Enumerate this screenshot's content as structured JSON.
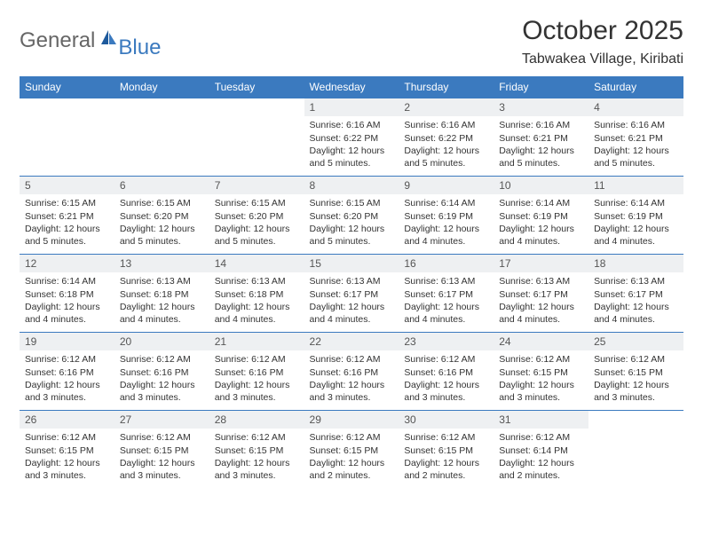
{
  "logo": {
    "text1": "General",
    "text2": "Blue"
  },
  "title": "October 2025",
  "location": "Tabwakea Village, Kiribati",
  "colors": {
    "header_bg": "#3b7abf",
    "header_text": "#ffffff",
    "daynum_bg": "#eef0f2",
    "daynum_text": "#555555",
    "border": "#3b7abf",
    "body_text": "#333333",
    "logo_gray": "#666666",
    "logo_blue": "#3b7abf"
  },
  "weekdays": [
    "Sunday",
    "Monday",
    "Tuesday",
    "Wednesday",
    "Thursday",
    "Friday",
    "Saturday"
  ],
  "weeks": [
    [
      {
        "day": "",
        "sunrise": "",
        "sunset": "",
        "daylight": ""
      },
      {
        "day": "",
        "sunrise": "",
        "sunset": "",
        "daylight": ""
      },
      {
        "day": "",
        "sunrise": "",
        "sunset": "",
        "daylight": ""
      },
      {
        "day": "1",
        "sunrise": "Sunrise: 6:16 AM",
        "sunset": "Sunset: 6:22 PM",
        "daylight": "Daylight: 12 hours and 5 minutes."
      },
      {
        "day": "2",
        "sunrise": "Sunrise: 6:16 AM",
        "sunset": "Sunset: 6:22 PM",
        "daylight": "Daylight: 12 hours and 5 minutes."
      },
      {
        "day": "3",
        "sunrise": "Sunrise: 6:16 AM",
        "sunset": "Sunset: 6:21 PM",
        "daylight": "Daylight: 12 hours and 5 minutes."
      },
      {
        "day": "4",
        "sunrise": "Sunrise: 6:16 AM",
        "sunset": "Sunset: 6:21 PM",
        "daylight": "Daylight: 12 hours and 5 minutes."
      }
    ],
    [
      {
        "day": "5",
        "sunrise": "Sunrise: 6:15 AM",
        "sunset": "Sunset: 6:21 PM",
        "daylight": "Daylight: 12 hours and 5 minutes."
      },
      {
        "day": "6",
        "sunrise": "Sunrise: 6:15 AM",
        "sunset": "Sunset: 6:20 PM",
        "daylight": "Daylight: 12 hours and 5 minutes."
      },
      {
        "day": "7",
        "sunrise": "Sunrise: 6:15 AM",
        "sunset": "Sunset: 6:20 PM",
        "daylight": "Daylight: 12 hours and 5 minutes."
      },
      {
        "day": "8",
        "sunrise": "Sunrise: 6:15 AM",
        "sunset": "Sunset: 6:20 PM",
        "daylight": "Daylight: 12 hours and 5 minutes."
      },
      {
        "day": "9",
        "sunrise": "Sunrise: 6:14 AM",
        "sunset": "Sunset: 6:19 PM",
        "daylight": "Daylight: 12 hours and 4 minutes."
      },
      {
        "day": "10",
        "sunrise": "Sunrise: 6:14 AM",
        "sunset": "Sunset: 6:19 PM",
        "daylight": "Daylight: 12 hours and 4 minutes."
      },
      {
        "day": "11",
        "sunrise": "Sunrise: 6:14 AM",
        "sunset": "Sunset: 6:19 PM",
        "daylight": "Daylight: 12 hours and 4 minutes."
      }
    ],
    [
      {
        "day": "12",
        "sunrise": "Sunrise: 6:14 AM",
        "sunset": "Sunset: 6:18 PM",
        "daylight": "Daylight: 12 hours and 4 minutes."
      },
      {
        "day": "13",
        "sunrise": "Sunrise: 6:13 AM",
        "sunset": "Sunset: 6:18 PM",
        "daylight": "Daylight: 12 hours and 4 minutes."
      },
      {
        "day": "14",
        "sunrise": "Sunrise: 6:13 AM",
        "sunset": "Sunset: 6:18 PM",
        "daylight": "Daylight: 12 hours and 4 minutes."
      },
      {
        "day": "15",
        "sunrise": "Sunrise: 6:13 AM",
        "sunset": "Sunset: 6:17 PM",
        "daylight": "Daylight: 12 hours and 4 minutes."
      },
      {
        "day": "16",
        "sunrise": "Sunrise: 6:13 AM",
        "sunset": "Sunset: 6:17 PM",
        "daylight": "Daylight: 12 hours and 4 minutes."
      },
      {
        "day": "17",
        "sunrise": "Sunrise: 6:13 AM",
        "sunset": "Sunset: 6:17 PM",
        "daylight": "Daylight: 12 hours and 4 minutes."
      },
      {
        "day": "18",
        "sunrise": "Sunrise: 6:13 AM",
        "sunset": "Sunset: 6:17 PM",
        "daylight": "Daylight: 12 hours and 4 minutes."
      }
    ],
    [
      {
        "day": "19",
        "sunrise": "Sunrise: 6:12 AM",
        "sunset": "Sunset: 6:16 PM",
        "daylight": "Daylight: 12 hours and 3 minutes."
      },
      {
        "day": "20",
        "sunrise": "Sunrise: 6:12 AM",
        "sunset": "Sunset: 6:16 PM",
        "daylight": "Daylight: 12 hours and 3 minutes."
      },
      {
        "day": "21",
        "sunrise": "Sunrise: 6:12 AM",
        "sunset": "Sunset: 6:16 PM",
        "daylight": "Daylight: 12 hours and 3 minutes."
      },
      {
        "day": "22",
        "sunrise": "Sunrise: 6:12 AM",
        "sunset": "Sunset: 6:16 PM",
        "daylight": "Daylight: 12 hours and 3 minutes."
      },
      {
        "day": "23",
        "sunrise": "Sunrise: 6:12 AM",
        "sunset": "Sunset: 6:16 PM",
        "daylight": "Daylight: 12 hours and 3 minutes."
      },
      {
        "day": "24",
        "sunrise": "Sunrise: 6:12 AM",
        "sunset": "Sunset: 6:15 PM",
        "daylight": "Daylight: 12 hours and 3 minutes."
      },
      {
        "day": "25",
        "sunrise": "Sunrise: 6:12 AM",
        "sunset": "Sunset: 6:15 PM",
        "daylight": "Daylight: 12 hours and 3 minutes."
      }
    ],
    [
      {
        "day": "26",
        "sunrise": "Sunrise: 6:12 AM",
        "sunset": "Sunset: 6:15 PM",
        "daylight": "Daylight: 12 hours and 3 minutes."
      },
      {
        "day": "27",
        "sunrise": "Sunrise: 6:12 AM",
        "sunset": "Sunset: 6:15 PM",
        "daylight": "Daylight: 12 hours and 3 minutes."
      },
      {
        "day": "28",
        "sunrise": "Sunrise: 6:12 AM",
        "sunset": "Sunset: 6:15 PM",
        "daylight": "Daylight: 12 hours and 3 minutes."
      },
      {
        "day": "29",
        "sunrise": "Sunrise: 6:12 AM",
        "sunset": "Sunset: 6:15 PM",
        "daylight": "Daylight: 12 hours and 2 minutes."
      },
      {
        "day": "30",
        "sunrise": "Sunrise: 6:12 AM",
        "sunset": "Sunset: 6:15 PM",
        "daylight": "Daylight: 12 hours and 2 minutes."
      },
      {
        "day": "31",
        "sunrise": "Sunrise: 6:12 AM",
        "sunset": "Sunset: 6:14 PM",
        "daylight": "Daylight: 12 hours and 2 minutes."
      },
      {
        "day": "",
        "sunrise": "",
        "sunset": "",
        "daylight": ""
      }
    ]
  ]
}
